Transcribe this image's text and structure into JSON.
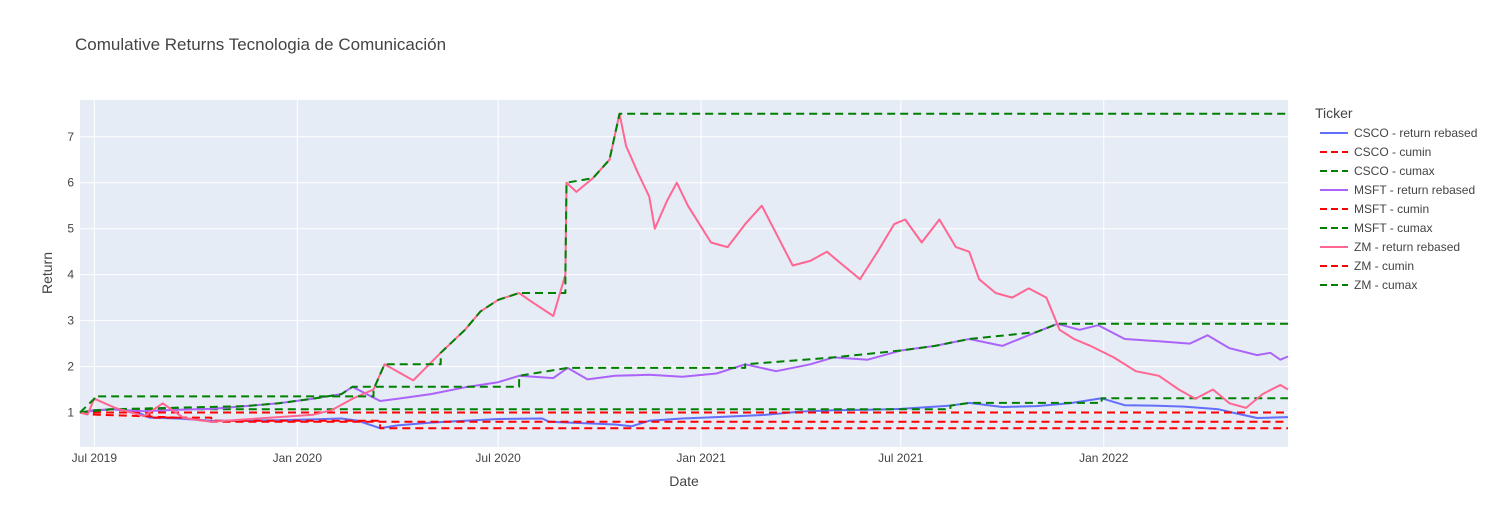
{
  "chart_data": {
    "type": "line",
    "title": "Comulative Returns Tecnologia de Comunicación",
    "xlabel": "Date",
    "ylabel": "Return",
    "x_range": [
      "2019-06-18",
      "2022-06-17"
    ],
    "ylim": [
      0.25,
      7.8
    ],
    "x_ticks": [
      {
        "date": "2019-07-01",
        "label": "Jul 2019"
      },
      {
        "date": "2020-01-01",
        "label": "Jan 2020"
      },
      {
        "date": "2020-07-01",
        "label": "Jul 2020"
      },
      {
        "date": "2021-01-01",
        "label": "Jan 2021"
      },
      {
        "date": "2021-07-01",
        "label": "Jul 2021"
      },
      {
        "date": "2022-01-01",
        "label": "Jan 2022"
      }
    ],
    "y_ticks": [
      1,
      2,
      3,
      4,
      5,
      6,
      7
    ],
    "grid": true,
    "legend": {
      "title": "Ticker",
      "placement": "right"
    },
    "colors": {
      "CSCO": "#636efa",
      "MSFT": "#ab63fa",
      "ZM": "#ff6692",
      "cumin": "#ff0000",
      "cumax": "#008000",
      "plot_bg": "#e5ecf6"
    },
    "series": [
      {
        "name": "CSCO - return rebased",
        "style": "solid",
        "color": "#636efa",
        "points": [
          [
            "2019-06-18",
            1.0
          ],
          [
            "2019-07-01",
            1.05
          ],
          [
            "2019-07-20",
            1.07
          ],
          [
            "2019-08-08",
            1.02
          ],
          [
            "2019-08-20",
            0.89
          ],
          [
            "2019-09-15",
            0.87
          ],
          [
            "2019-10-15",
            0.82
          ],
          [
            "2019-11-15",
            0.82
          ],
          [
            "2019-12-15",
            0.83
          ],
          [
            "2020-01-15",
            0.85
          ],
          [
            "2020-02-10",
            0.87
          ],
          [
            "2020-02-25",
            0.82
          ],
          [
            "2020-03-16",
            0.66
          ],
          [
            "2020-04-01",
            0.72
          ],
          [
            "2020-05-01",
            0.78
          ],
          [
            "2020-06-01",
            0.82
          ],
          [
            "2020-07-01",
            0.86
          ],
          [
            "2020-08-10",
            0.87
          ],
          [
            "2020-08-16",
            0.8
          ],
          [
            "2020-09-15",
            0.77
          ],
          [
            "2020-10-15",
            0.74
          ],
          [
            "2020-10-30",
            0.7
          ],
          [
            "2020-11-15",
            0.82
          ],
          [
            "2020-12-15",
            0.87
          ],
          [
            "2021-01-15",
            0.9
          ],
          [
            "2021-03-01",
            0.95
          ],
          [
            "2021-04-01",
            1.02
          ],
          [
            "2021-05-01",
            1.05
          ],
          [
            "2021-06-01",
            1.06
          ],
          [
            "2021-07-01",
            1.08
          ],
          [
            "2021-08-15",
            1.15
          ],
          [
            "2021-09-01",
            1.21
          ],
          [
            "2021-10-01",
            1.12
          ],
          [
            "2021-11-01",
            1.14
          ],
          [
            "2021-12-01",
            1.2
          ],
          [
            "2021-12-30",
            1.31
          ],
          [
            "2022-01-20",
            1.16
          ],
          [
            "2022-02-15",
            1.15
          ],
          [
            "2022-03-15",
            1.13
          ],
          [
            "2022-04-15",
            1.07
          ],
          [
            "2022-05-01",
            0.98
          ],
          [
            "2022-05-20",
            0.88
          ],
          [
            "2022-06-17",
            0.9
          ]
        ]
      },
      {
        "name": "CSCO - cumin",
        "style": "dash",
        "color": "#ff0000",
        "points": [
          [
            "2019-06-18",
            1.0
          ],
          [
            "2019-08-20",
            1.0
          ],
          [
            "2019-08-20",
            0.89
          ],
          [
            "2019-10-15",
            0.89
          ],
          [
            "2019-10-15",
            0.82
          ],
          [
            "2020-03-16",
            0.82
          ],
          [
            "2020-03-16",
            0.66
          ],
          [
            "2022-06-17",
            0.66
          ]
        ]
      },
      {
        "name": "CSCO - cumax",
        "style": "dash",
        "color": "#008000",
        "points": [
          [
            "2019-06-18",
            1.0
          ],
          [
            "2019-07-01",
            1.05
          ],
          [
            "2019-07-20",
            1.07
          ],
          [
            "2021-08-15",
            1.07
          ],
          [
            "2021-08-15",
            1.15
          ],
          [
            "2021-09-01",
            1.21
          ],
          [
            "2021-12-30",
            1.21
          ],
          [
            "2021-12-30",
            1.31
          ],
          [
            "2022-06-17",
            1.31
          ]
        ]
      },
      {
        "name": "MSFT - cumin",
        "style": "dash",
        "color": "#ff0000",
        "points": [
          [
            "2019-06-18",
            1.0
          ],
          [
            "2022-06-17",
            1.0
          ]
        ]
      },
      {
        "name": "MSFT - return rebased",
        "style": "solid",
        "color": "#ab63fa",
        "points": [
          [
            "2019-06-18",
            1.0
          ],
          [
            "2019-07-15",
            1.07
          ],
          [
            "2019-08-15",
            1.03
          ],
          [
            "2019-09-15",
            1.06
          ],
          [
            "2019-10-15",
            1.08
          ],
          [
            "2019-11-15",
            1.14
          ],
          [
            "2019-12-15",
            1.2
          ],
          [
            "2020-01-15",
            1.3
          ],
          [
            "2020-02-10",
            1.4
          ],
          [
            "2020-02-20",
            1.56
          ],
          [
            "2020-03-16",
            1.25
          ],
          [
            "2020-04-01",
            1.3
          ],
          [
            "2020-05-01",
            1.4
          ],
          [
            "2020-06-01",
            1.55
          ],
          [
            "2020-07-01",
            1.66
          ],
          [
            "2020-07-20",
            1.8
          ],
          [
            "2020-08-20",
            1.75
          ],
          [
            "2020-09-02",
            1.97
          ],
          [
            "2020-09-20",
            1.72
          ],
          [
            "2020-10-15",
            1.8
          ],
          [
            "2020-11-15",
            1.82
          ],
          [
            "2020-12-15",
            1.78
          ],
          [
            "2021-01-15",
            1.85
          ],
          [
            "2021-02-10",
            2.05
          ],
          [
            "2021-03-10",
            1.9
          ],
          [
            "2021-04-10",
            2.05
          ],
          [
            "2021-05-01",
            2.2
          ],
          [
            "2021-06-01",
            2.15
          ],
          [
            "2021-07-01",
            2.35
          ],
          [
            "2021-08-01",
            2.45
          ],
          [
            "2021-09-01",
            2.6
          ],
          [
            "2021-10-01",
            2.45
          ],
          [
            "2021-11-01",
            2.75
          ],
          [
            "2021-11-20",
            2.93
          ],
          [
            "2021-12-10",
            2.8
          ],
          [
            "2021-12-27",
            2.9
          ],
          [
            "2022-01-20",
            2.6
          ],
          [
            "2022-02-20",
            2.55
          ],
          [
            "2022-03-20",
            2.5
          ],
          [
            "2022-04-05",
            2.68
          ],
          [
            "2022-04-25",
            2.4
          ],
          [
            "2022-05-20",
            2.25
          ],
          [
            "2022-06-01",
            2.3
          ],
          [
            "2022-06-10",
            2.15
          ],
          [
            "2022-06-17",
            2.22
          ]
        ]
      },
      {
        "name": "MSFT - cumax",
        "style": "dash",
        "color": "#008000",
        "points": [
          [
            "2019-06-18",
            1.0
          ],
          [
            "2019-07-15",
            1.07
          ],
          [
            "2019-11-15",
            1.14
          ],
          [
            "2019-12-15",
            1.2
          ],
          [
            "2020-01-15",
            1.3
          ],
          [
            "2020-02-10",
            1.4
          ],
          [
            "2020-02-20",
            1.56
          ],
          [
            "2020-07-20",
            1.56
          ],
          [
            "2020-07-20",
            1.8
          ],
          [
            "2020-09-02",
            1.97
          ],
          [
            "2021-02-10",
            1.97
          ],
          [
            "2021-02-10",
            2.05
          ],
          [
            "2021-05-01",
            2.2
          ],
          [
            "2021-07-01",
            2.35
          ],
          [
            "2021-08-01",
            2.45
          ],
          [
            "2021-09-01",
            2.6
          ],
          [
            "2021-11-01",
            2.75
          ],
          [
            "2021-11-20",
            2.93
          ],
          [
            "2022-06-17",
            2.93
          ]
        ]
      },
      {
        "name": "ZM - cumin",
        "style": "dash",
        "color": "#ff0000",
        "points": [
          [
            "2019-06-18",
            1.0
          ],
          [
            "2019-06-25",
            0.96
          ],
          [
            "2019-08-15",
            0.92
          ],
          [
            "2019-09-20",
            0.88
          ],
          [
            "2019-10-15",
            0.8
          ],
          [
            "2022-06-17",
            0.8
          ]
        ]
      },
      {
        "name": "ZM - return rebased",
        "style": "solid",
        "color": "#ff6692",
        "points": [
          [
            "2019-06-18",
            1.0
          ],
          [
            "2019-06-25",
            0.96
          ],
          [
            "2019-07-01",
            1.3
          ],
          [
            "2019-07-20",
            1.1
          ],
          [
            "2019-08-15",
            0.92
          ],
          [
            "2019-09-01",
            1.2
          ],
          [
            "2019-09-20",
            0.88
          ],
          [
            "2019-10-15",
            0.8
          ],
          [
            "2019-11-15",
            0.85
          ],
          [
            "2019-12-15",
            0.9
          ],
          [
            "2020-01-15",
            0.95
          ],
          [
            "2020-02-01",
            1.05
          ],
          [
            "2020-02-20",
            1.3
          ],
          [
            "2020-03-10",
            1.5
          ],
          [
            "2020-03-20",
            2.05
          ],
          [
            "2020-04-15",
            1.7
          ],
          [
            "2020-05-10",
            2.3
          ],
          [
            "2020-06-01",
            2.8
          ],
          [
            "2020-06-15",
            3.2
          ],
          [
            "2020-07-01",
            3.45
          ],
          [
            "2020-07-20",
            3.6
          ],
          [
            "2020-08-01",
            3.4
          ],
          [
            "2020-08-20",
            3.1
          ],
          [
            "2020-08-31",
            4.0
          ],
          [
            "2020-09-01",
            6.0
          ],
          [
            "2020-09-10",
            5.8
          ],
          [
            "2020-09-25",
            6.1
          ],
          [
            "2020-10-10",
            6.5
          ],
          [
            "2020-10-19",
            7.5
          ],
          [
            "2020-10-25",
            6.8
          ],
          [
            "2020-11-05",
            6.2
          ],
          [
            "2020-11-15",
            5.7
          ],
          [
            "2020-11-20",
            5.0
          ],
          [
            "2020-12-01",
            5.6
          ],
          [
            "2020-12-10",
            6.0
          ],
          [
            "2020-12-20",
            5.5
          ],
          [
            "2021-01-10",
            4.7
          ],
          [
            "2021-01-25",
            4.6
          ],
          [
            "2021-02-10",
            5.1
          ],
          [
            "2021-02-25",
            5.5
          ],
          [
            "2021-03-10",
            4.9
          ],
          [
            "2021-03-25",
            4.2
          ],
          [
            "2021-04-10",
            4.3
          ],
          [
            "2021-04-25",
            4.5
          ],
          [
            "2021-05-10",
            4.2
          ],
          [
            "2021-05-25",
            3.9
          ],
          [
            "2021-06-10",
            4.5
          ],
          [
            "2021-06-25",
            5.1
          ],
          [
            "2021-07-05",
            5.2
          ],
          [
            "2021-07-20",
            4.7
          ],
          [
            "2021-08-05",
            5.2
          ],
          [
            "2021-08-20",
            4.6
          ],
          [
            "2021-09-01",
            4.5
          ],
          [
            "2021-09-10",
            3.9
          ],
          [
            "2021-09-25",
            3.6
          ],
          [
            "2021-10-10",
            3.5
          ],
          [
            "2021-10-25",
            3.7
          ],
          [
            "2021-11-10",
            3.5
          ],
          [
            "2021-11-22",
            2.8
          ],
          [
            "2021-12-05",
            2.6
          ],
          [
            "2021-12-20",
            2.45
          ],
          [
            "2022-01-10",
            2.2
          ],
          [
            "2022-01-30",
            1.9
          ],
          [
            "2022-02-20",
            1.8
          ],
          [
            "2022-03-10",
            1.5
          ],
          [
            "2022-03-25",
            1.3
          ],
          [
            "2022-04-10",
            1.5
          ],
          [
            "2022-04-25",
            1.2
          ],
          [
            "2022-05-10",
            1.1
          ],
          [
            "2022-05-25",
            1.4
          ],
          [
            "2022-06-10",
            1.6
          ],
          [
            "2022-06-17",
            1.5
          ]
        ]
      },
      {
        "name": "ZM - cumax",
        "style": "dash",
        "color": "#008000",
        "points": [
          [
            "2019-06-18",
            1.0
          ],
          [
            "2019-07-01",
            1.3
          ],
          [
            "2019-07-01",
            1.35
          ],
          [
            "2020-03-10",
            1.35
          ],
          [
            "2020-03-10",
            1.5
          ],
          [
            "2020-03-20",
            2.05
          ],
          [
            "2020-05-10",
            2.05
          ],
          [
            "2020-05-10",
            2.3
          ],
          [
            "2020-06-01",
            2.8
          ],
          [
            "2020-06-15",
            3.2
          ],
          [
            "2020-07-01",
            3.45
          ],
          [
            "2020-07-20",
            3.6
          ],
          [
            "2020-08-31",
            3.6
          ],
          [
            "2020-08-31",
            4.0
          ],
          [
            "2020-09-01",
            6.0
          ],
          [
            "2020-09-25",
            6.1
          ],
          [
            "2020-10-10",
            6.5
          ],
          [
            "2020-10-19",
            7.5
          ],
          [
            "2022-06-17",
            7.5
          ]
        ]
      }
    ],
    "legend_entries": [
      {
        "label": "CSCO - return rebased",
        "style": "solid",
        "color": "#636efa"
      },
      {
        "label": "CSCO - cumin",
        "style": "dash",
        "color": "#ff0000"
      },
      {
        "label": "CSCO - cumax",
        "style": "dash",
        "color": "#008000"
      },
      {
        "label": "MSFT - return rebased",
        "style": "solid",
        "color": "#ab63fa"
      },
      {
        "label": "MSFT - cumin",
        "style": "dash",
        "color": "#ff0000"
      },
      {
        "label": "MSFT - cumax",
        "style": "dash",
        "color": "#008000"
      },
      {
        "label": "ZM - return rebased",
        "style": "solid",
        "color": "#ff6692"
      },
      {
        "label": "ZM - cumin",
        "style": "dash",
        "color": "#ff0000"
      },
      {
        "label": "ZM - cumax",
        "style": "dash",
        "color": "#008000"
      }
    ]
  }
}
